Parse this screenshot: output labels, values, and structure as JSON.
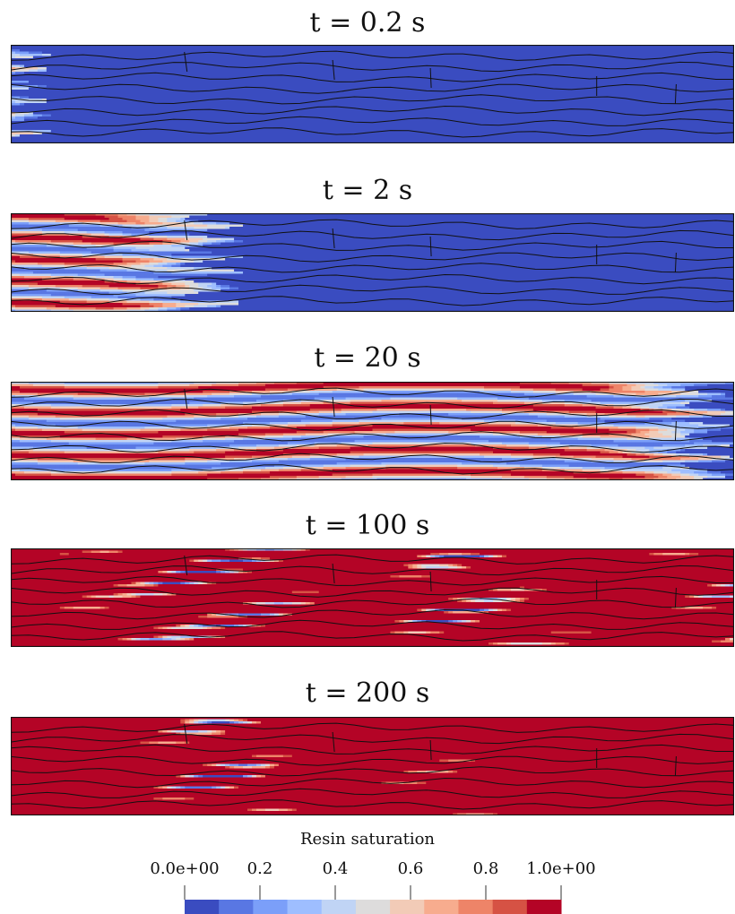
{
  "panels": [
    {
      "title": "t = 0.2 s",
      "front": 0.015
    },
    {
      "title": "t = 2 s",
      "front": 0.28
    },
    {
      "title": "t = 20 s",
      "front": 0.97
    },
    {
      "title": "t = 100 s",
      "front": 1.0
    },
    {
      "title": "t = 200 s",
      "front": 1.0
    }
  ],
  "colorbar": {
    "title": "Resin saturation",
    "tick_labels": [
      "0.0e+00",
      "0.2",
      "0.4",
      "0.6",
      "0.8",
      "1.0e+00"
    ],
    "range": [
      0,
      1
    ],
    "colors": [
      "#3a4cc0",
      "#5977e3",
      "#7b9ff9",
      "#9ebeff",
      "#c0d4f5",
      "#dddcdc",
      "#f2cbb7",
      "#f7ac8e",
      "#ee8468",
      "#d65244",
      "#b40426"
    ]
  },
  "colors": {
    "outline": "#111111"
  }
}
